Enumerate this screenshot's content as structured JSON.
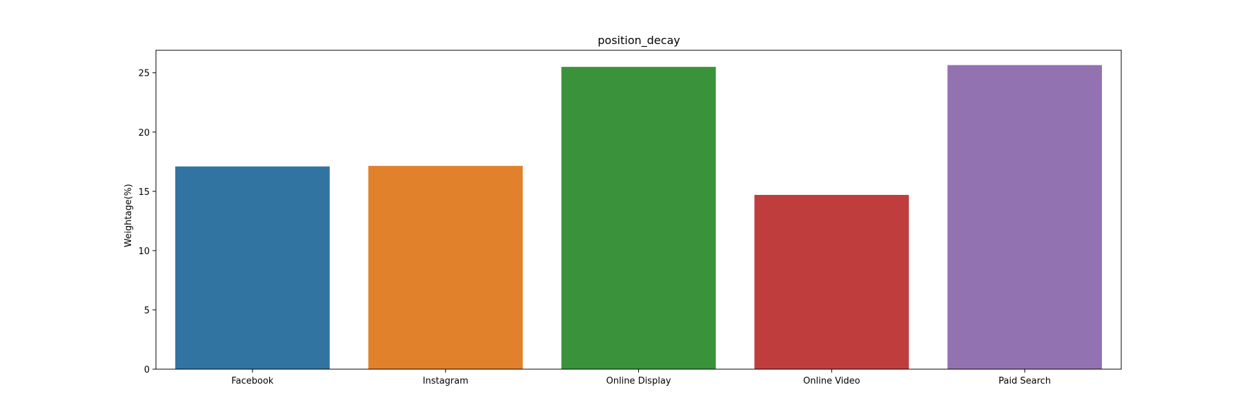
{
  "chart_data": {
    "type": "bar",
    "title": "position_decay",
    "xlabel": "",
    "ylabel": "Weightage(%)",
    "categories": [
      "Facebook",
      "Instagram",
      "Online Display",
      "Online Video",
      "Paid Search"
    ],
    "values": [
      17.1,
      17.15,
      25.5,
      14.7,
      25.65
    ],
    "colors": [
      "#3274a1",
      "#e1812c",
      "#3a923a",
      "#c03d3e",
      "#9372b2"
    ],
    "ylim": [
      0,
      26.9
    ],
    "yticks": [
      0,
      5,
      10,
      15,
      20,
      25
    ],
    "grid": false,
    "legend": "none"
  }
}
